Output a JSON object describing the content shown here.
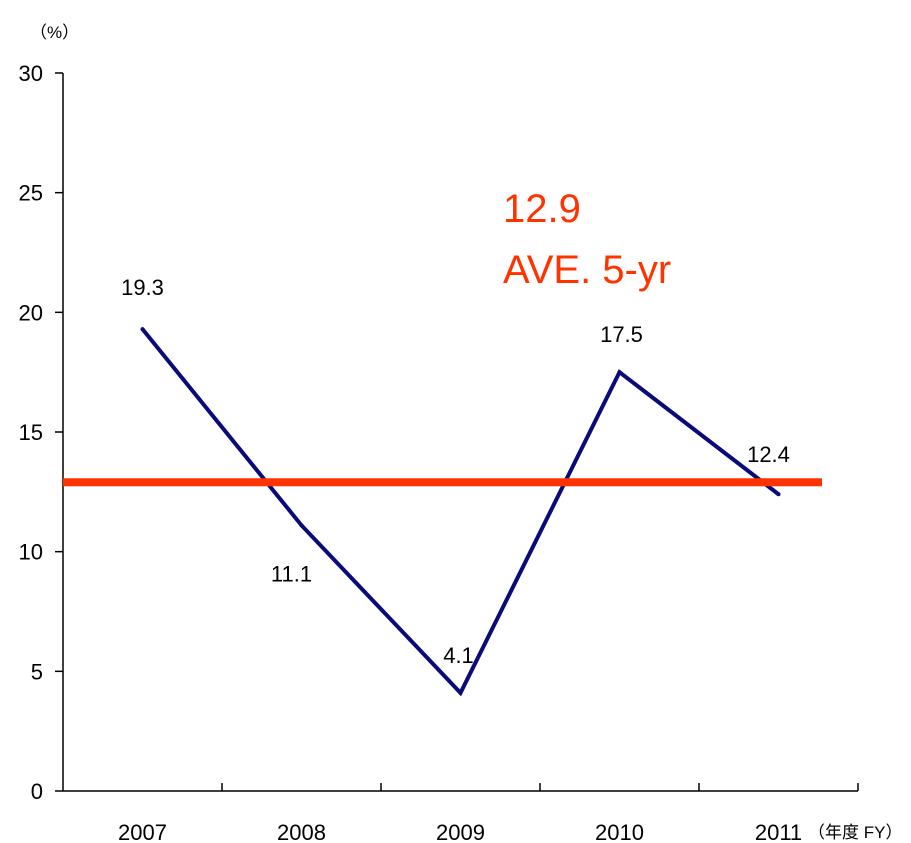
{
  "chart_data": {
    "type": "line",
    "categories": [
      "2007",
      "2008",
      "2009",
      "2010",
      "2011"
    ],
    "series": [
      {
        "values": [
          19.3,
          11.1,
          4.1,
          17.5,
          12.4
        ],
        "color": "#0a0a7a"
      }
    ],
    "data_labels": [
      "19.3",
      "11.1",
      "4.1",
      "17.5",
      "12.4"
    ],
    "y_unit_label": "（%）",
    "x_unit_label": "（年度 FY）",
    "ylim": [
      0,
      30
    ],
    "y_ticks": [
      0,
      5,
      10,
      15,
      20,
      25,
      30
    ],
    "y_tick_labels": [
      "0",
      "5",
      "10",
      "15",
      "20",
      "25",
      "30"
    ],
    "average": {
      "value": 12.9,
      "value_label": "12.9",
      "label": "AVE. 5-yr",
      "color": "#ff3300"
    },
    "grid": false,
    "legend": false
  }
}
